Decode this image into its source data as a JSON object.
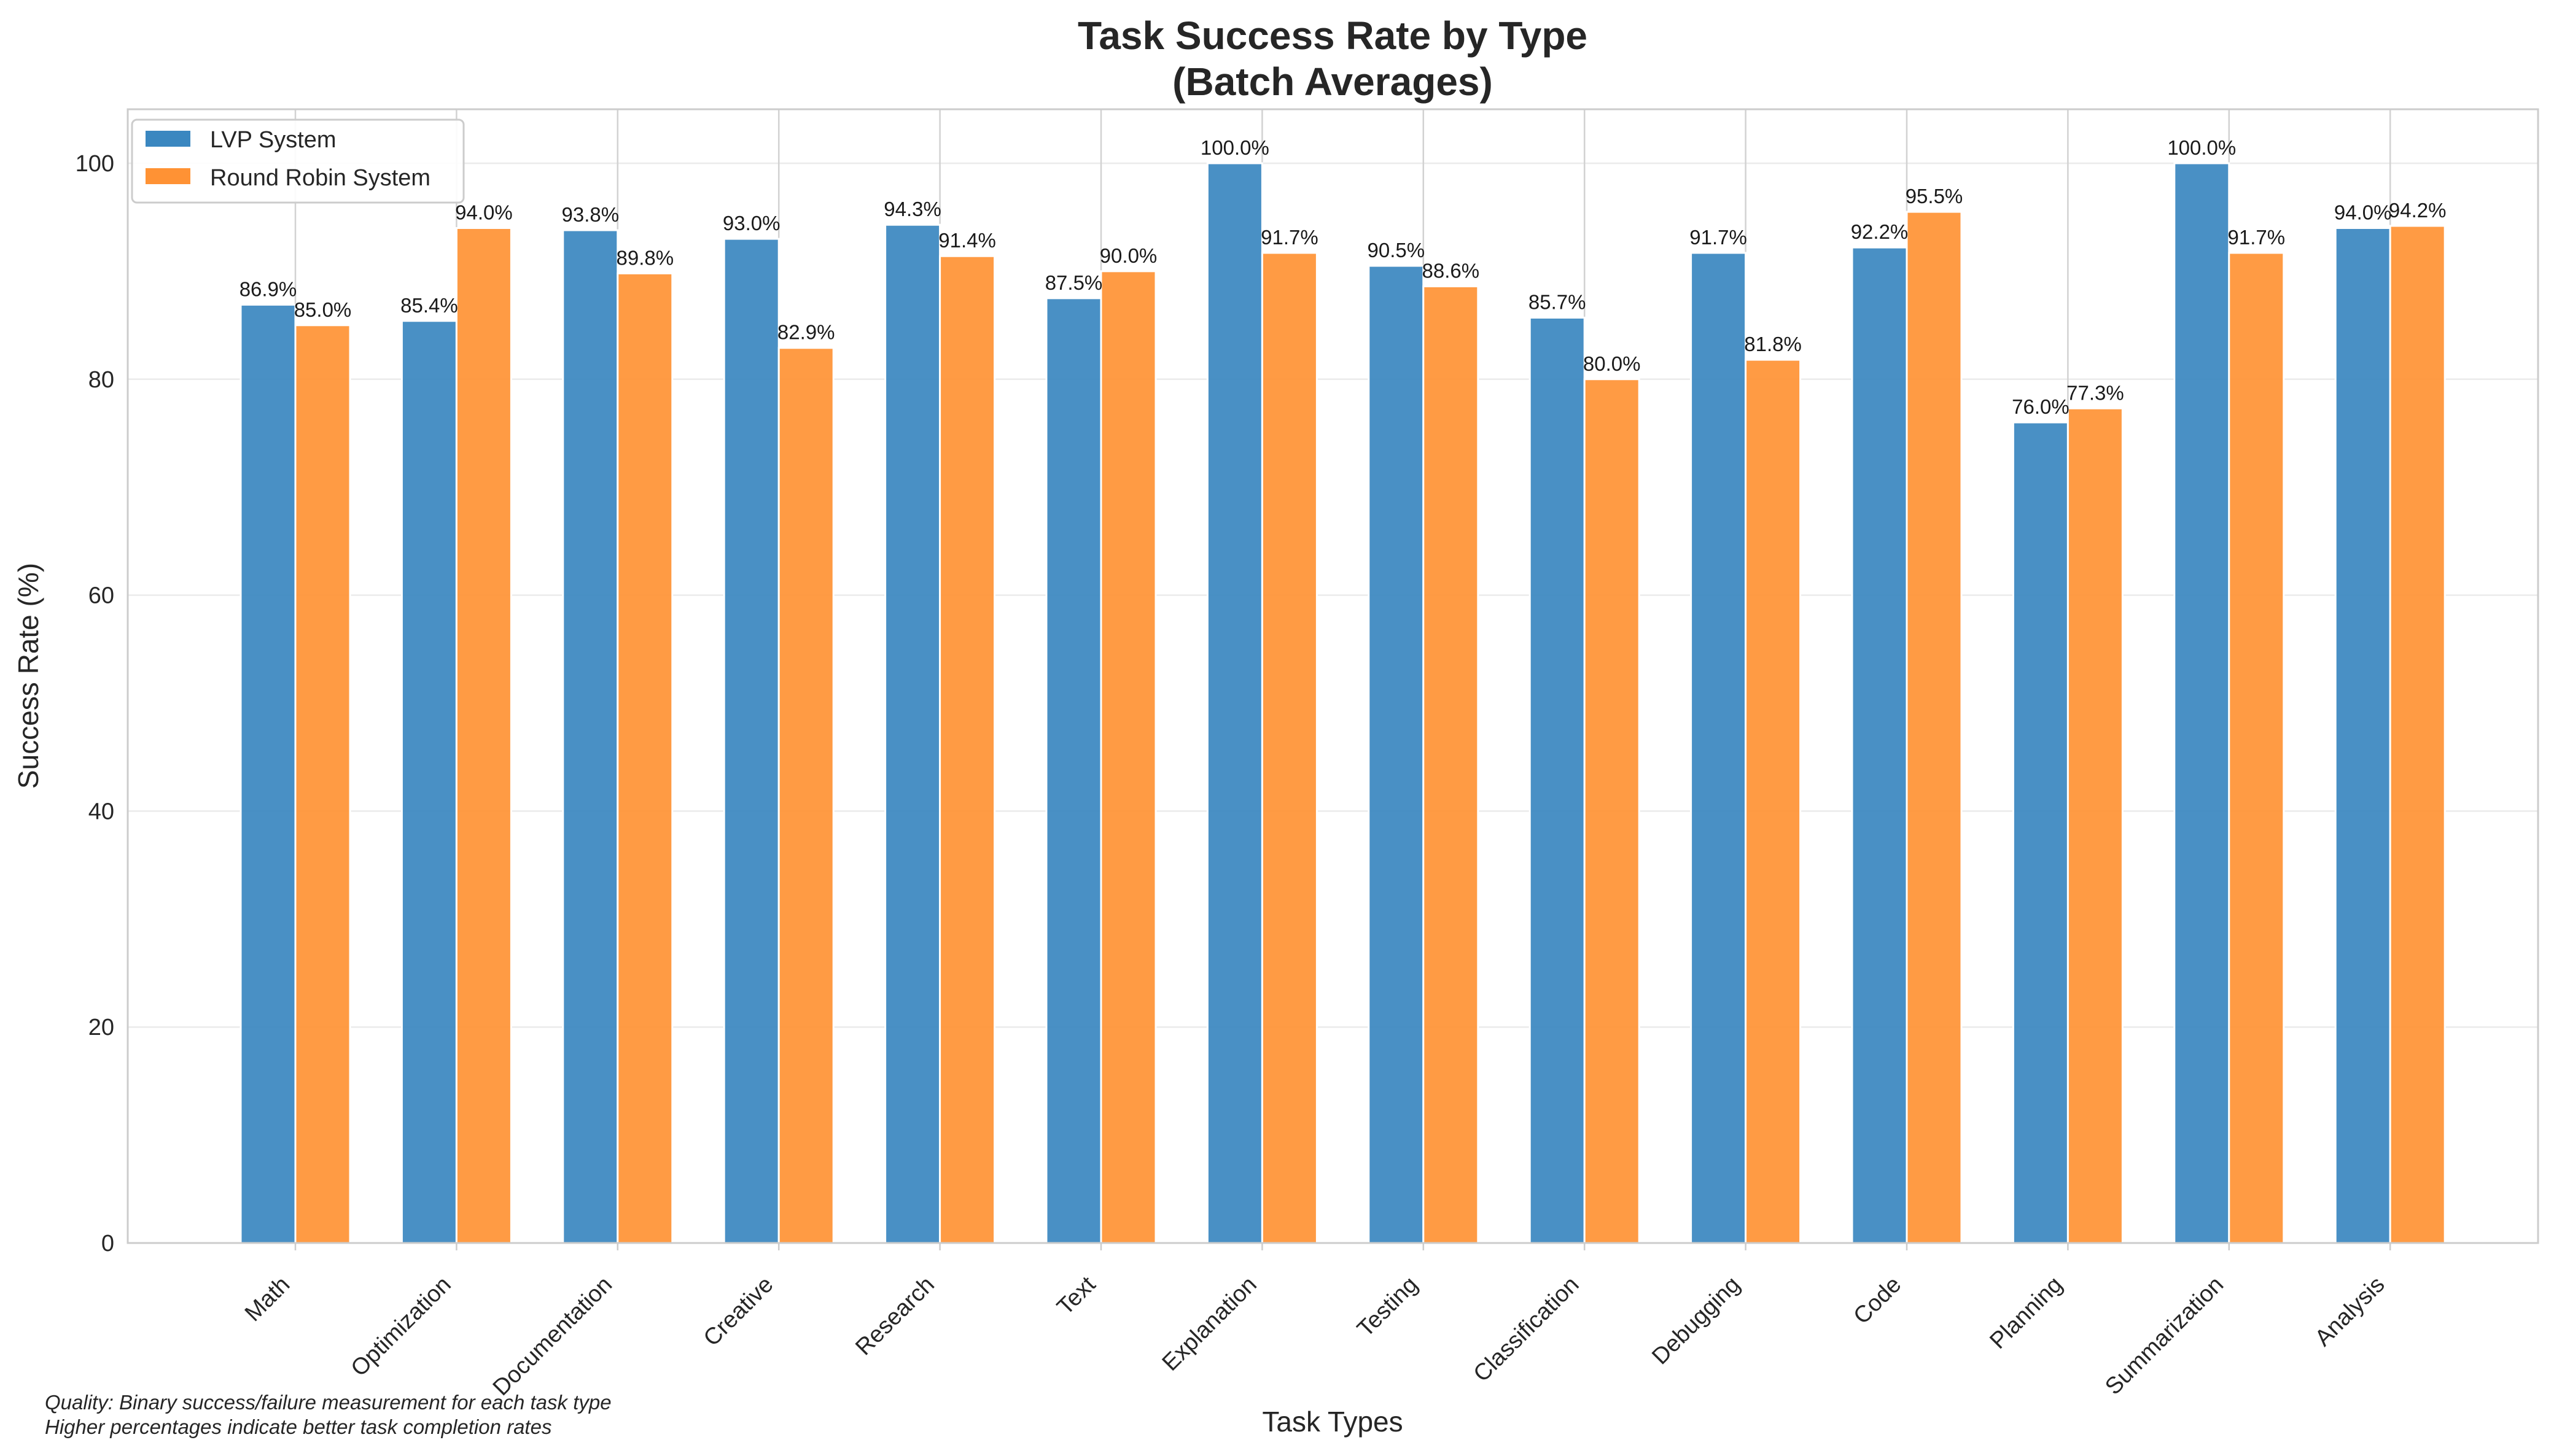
{
  "chart_data": {
    "type": "bar",
    "title": "Task Success Rate by Type",
    "subtitle": "(Batch Averages)",
    "xlabel": "Task Types",
    "ylabel": "Success Rate (%)",
    "ylim": [
      0,
      105
    ],
    "yticks": [
      0,
      20,
      40,
      60,
      80,
      100
    ],
    "grid": true,
    "legend_position": "top-left",
    "categories": [
      "Math",
      "Optimization",
      "Documentation",
      "Creative",
      "Research",
      "Text",
      "Explanation",
      "Testing",
      "Classification",
      "Debugging",
      "Code",
      "Planning",
      "Summarization",
      "Analysis"
    ],
    "series": [
      {
        "name": "LVP System",
        "color": "#3a87c0",
        "values": [
          86.9,
          85.4,
          93.8,
          93.0,
          94.3,
          87.5,
          100.0,
          90.5,
          85.7,
          91.7,
          92.2,
          76.0,
          100.0,
          94.0
        ],
        "labels": [
          "86.9%",
          "85.4%",
          "93.8%",
          "93.0%",
          "94.3%",
          "87.5%",
          "100.0%",
          "90.5%",
          "85.7%",
          "91.7%",
          "92.2%",
          "76.0%",
          "100.0%",
          "94.0%"
        ]
      },
      {
        "name": "Round Robin System",
        "color": "#ff9234",
        "values": [
          85.0,
          94.0,
          89.8,
          82.9,
          91.4,
          90.0,
          91.7,
          88.6,
          80.0,
          81.8,
          95.5,
          77.3,
          91.7,
          94.2
        ],
        "labels": [
          "85.0%",
          "94.0%",
          "89.8%",
          "82.9%",
          "91.4%",
          "90.0%",
          "91.7%",
          "88.6%",
          "80.0%",
          "81.8%",
          "95.5%",
          "77.3%",
          "91.7%",
          "94.2%"
        ]
      }
    ]
  },
  "footnotes": [
    "Quality: Binary success/failure measurement for each task type",
    "Higher percentages indicate better task completion rates"
  ]
}
